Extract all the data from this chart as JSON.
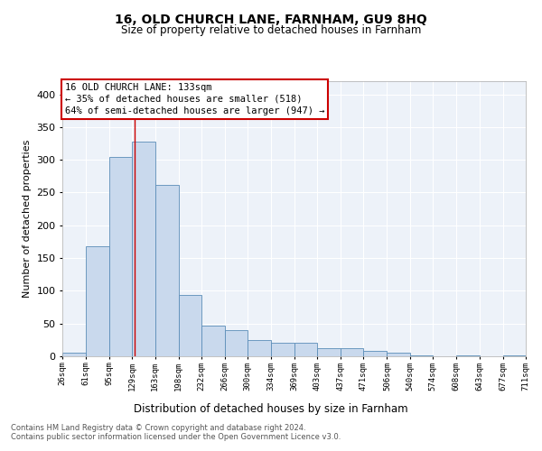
{
  "title": "16, OLD CHURCH LANE, FARNHAM, GU9 8HQ",
  "subtitle": "Size of property relative to detached houses in Farnham",
  "xlabel": "Distribution of detached houses by size in Farnham",
  "ylabel": "Number of detached properties",
  "bar_color": "#c9d9ed",
  "bar_edge_color": "#5b8db8",
  "property_line_x": 133,
  "annotation_line1": "16 OLD CHURCH LANE: 133sqm",
  "annotation_line2": "← 35% of detached houses are smaller (518)",
  "annotation_line3": "64% of semi-detached houses are larger (947) →",
  "footer": "Contains HM Land Registry data © Crown copyright and database right 2024.\nContains public sector information licensed under the Open Government Licence v3.0.",
  "bin_edges": [
    26,
    61,
    95,
    129,
    163,
    198,
    232,
    266,
    300,
    334,
    369,
    403,
    437,
    471,
    506,
    540,
    574,
    608,
    643,
    677,
    711
  ],
  "bin_counts": [
    5,
    168,
    305,
    328,
    261,
    93,
    47,
    40,
    25,
    20,
    20,
    13,
    13,
    8,
    5,
    1,
    0,
    1,
    0,
    2
  ],
  "ylim": [
    0,
    420
  ],
  "yticks": [
    0,
    50,
    100,
    150,
    200,
    250,
    300,
    350,
    400
  ],
  "background_color": "#edf2f9"
}
